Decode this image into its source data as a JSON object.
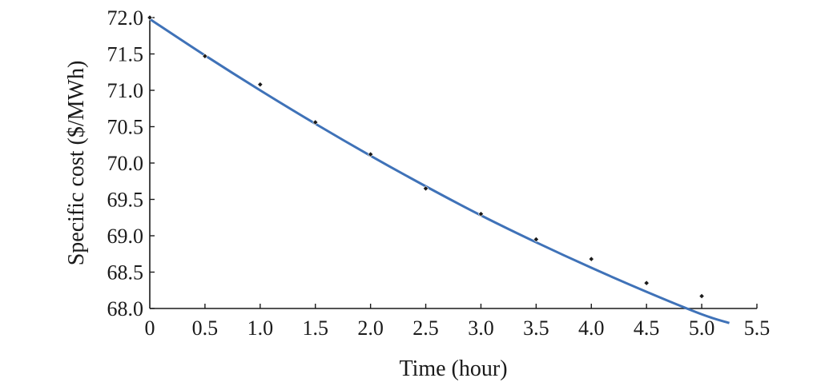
{
  "chart_data": {
    "type": "scatter",
    "title": "",
    "xlabel": "Time (hour)",
    "ylabel": "Specific cost ($/MWh)",
    "xlim": [
      0,
      5.5
    ],
    "ylim": [
      68.0,
      72.0
    ],
    "x_ticks": [
      "0",
      "0.5",
      "1.0",
      "1.5",
      "2.0",
      "2.5",
      "3.0",
      "3.5",
      "4.0",
      "4.5",
      "5.0",
      "5.5"
    ],
    "y_ticks": [
      "68.0",
      "68.5",
      "69.0",
      "69.5",
      "70.0",
      "70.5",
      "71.0",
      "71.5",
      "72.0"
    ],
    "grid": false,
    "legend": "none",
    "series": [
      {
        "kind": "points",
        "color": "#1a1a1a",
        "x": [
          0,
          0.5,
          1.0,
          1.5,
          2.0,
          2.5,
          3.0,
          3.5,
          4.0,
          4.5,
          5.0
        ],
        "y": [
          72.0,
          71.47,
          71.08,
          70.56,
          70.12,
          69.65,
          69.3,
          68.95,
          68.68,
          68.35,
          68.17
        ]
      },
      {
        "kind": "fitted-curve",
        "color": "#3f72b8",
        "x": [
          0,
          0.5,
          1.0,
          1.5,
          2.0,
          2.5,
          3.0,
          3.5,
          4.0,
          4.5,
          5.0,
          5.25
        ],
        "y": [
          71.98,
          71.48,
          71.0,
          70.54,
          70.1,
          69.68,
          69.28,
          68.91,
          68.56,
          68.23,
          67.92,
          67.8
        ]
      }
    ]
  }
}
